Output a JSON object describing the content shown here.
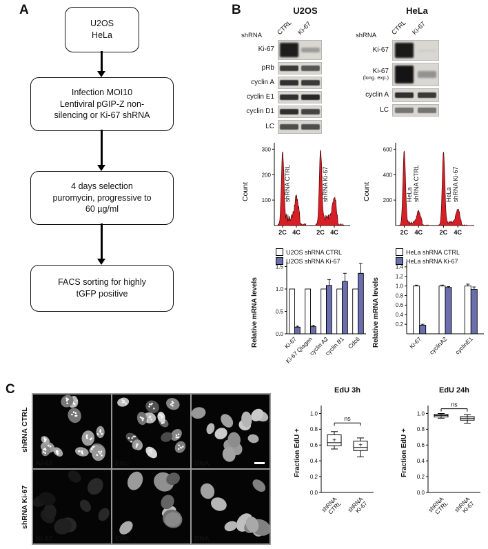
{
  "panels": {
    "a": "A",
    "b": "B",
    "c": "C"
  },
  "panel_a": {
    "steps": [
      "U2OS\nHeLa",
      "Infection MOI10\nLentiviral pGIP-Z non-\nsilencing or Ki-67 shRNA",
      "4 days selection\npuromycin, progressive to\n60 µg/ml",
      "FACS sorting for highly\ntGFP positive"
    ]
  },
  "panel_b": {
    "u2os": {
      "title": "U2OS",
      "shrna": "shRNA",
      "lanes": [
        "CTRL",
        "Ki-67"
      ],
      "blot_rows": [
        {
          "label": "Ki-67",
          "h": 27,
          "big": true,
          "lanes": [
            0.95,
            0.3
          ]
        },
        {
          "label": "pRb",
          "h": 16,
          "lanes": [
            0.8,
            0.65
          ]
        },
        {
          "label": "cyclin A",
          "h": 16,
          "lanes": [
            0.85,
            0.8
          ]
        },
        {
          "label": "cyclin E1",
          "h": 16,
          "lanes": [
            0.85,
            0.9
          ]
        },
        {
          "label": "cyclin D1",
          "h": 16,
          "lanes": [
            0.85,
            0.75
          ]
        },
        {
          "label": "LC",
          "h": 18,
          "lanes": [
            0.7,
            0.7
          ]
        }
      ],
      "facs": {
        "ylabel": "Count",
        "ymax": 320,
        "yticks": [
          100,
          200,
          300
        ],
        "xticks": [
          "2C",
          "4C",
          "2C",
          "4C"
        ],
        "color": "#d61f26",
        "samples": [
          {
            "label": "shRNA CTRL",
            "g1": 290,
            "g2": 88,
            "mid": 30
          },
          {
            "label": "shRNA Ki-67",
            "g1": 295,
            "g2": 82,
            "mid": 30
          }
        ]
      },
      "chart": {
        "type": "bar",
        "ylabel": "Relative mRNA levels",
        "ymax": 1.6,
        "yticks": [
          0,
          0.5,
          1,
          1.5
        ],
        "categories": [
          "Ki-67",
          "Ki-67 Qiagen",
          "cyclin A2",
          "cyclin B1",
          "Cdc6"
        ],
        "series": [
          {
            "name": "U2OS shRNA CTRL",
            "color": "#ffffff",
            "values": [
              1,
              1,
              1,
              1,
              1
            ],
            "err": [
              0,
              0,
              0,
              0,
              0
            ]
          },
          {
            "name": "U2OS shRNA Ki-67",
            "color": "#6a6fad",
            "values": [
              0.15,
              0.16,
              1.08,
              1.17,
              1.35
            ],
            "err": [
              0.02,
              0.03,
              0.13,
              0.18,
              0.22
            ]
          }
        ]
      }
    },
    "hela": {
      "title": "HeLa",
      "shrna": "shRNA",
      "lanes": [
        "CTRL",
        "Ki-67"
      ],
      "blot_rows": [
        {
          "label": "Ki-67",
          "h": 28,
          "big": true,
          "lanes": [
            0.97,
            0.04
          ]
        },
        {
          "label": "Ki-67",
          "sub": "(long. exp.)",
          "h": 32,
          "big": true,
          "lanes": [
            1,
            0.35
          ]
        },
        {
          "label": "cyclin A",
          "h": 18,
          "lanes": [
            0.85,
            0.8
          ]
        },
        {
          "label": "LC",
          "h": 16,
          "lanes": [
            0.5,
            0.5
          ]
        }
      ],
      "facs": {
        "ylabel": "Count",
        "ymax": 640,
        "yticks": [
          200,
          400,
          600
        ],
        "xticks": [
          "2C",
          "4C",
          "2C",
          "4C"
        ],
        "color": "#d61f26",
        "samples": [
          {
            "label": "HeLa\nshRNA CTRL",
            "g1": 590,
            "g2": 95,
            "mid": 22
          },
          {
            "label": "HeLa\nshRNA Ki-67",
            "g1": 580,
            "g2": 108,
            "mid": 24
          }
        ]
      },
      "chart": {
        "type": "bar",
        "ylabel": "Relative mRNA levels",
        "ymax": 1.5,
        "yticks": [
          0.2,
          0.4,
          0.6,
          0.8,
          1,
          1.2,
          1.4
        ],
        "categories": [
          "Ki-67",
          "cyclinA2",
          "cyclinE1"
        ],
        "series": [
          {
            "name": "HeLa shRNA CTRL",
            "color": "#ffffff",
            "values": [
              1,
              1,
              1
            ],
            "err": [
              0.02,
              0.02,
              0.04
            ]
          },
          {
            "name": "HeLa shRNA Ki-67",
            "color": "#6a6fad",
            "values": [
              0.18,
              0.97,
              0.93
            ],
            "err": [
              0.02,
              0.02,
              0.05
            ]
          }
        ]
      }
    }
  },
  "panel_c": {
    "micro": {
      "rows": [
        {
          "label": "shRNA CTRL",
          "cells": [
            {
              "stain": "Ki-67",
              "count": 14,
              "min": 0.45,
              "max": 0.75,
              "size": 9,
              "speckle": "#ffffff"
            },
            {
              "stain": "EdU",
              "count": 14,
              "min": 0.2,
              "max": 0.85,
              "size": 9,
              "speckle": "#f0f0f0"
            },
            {
              "stain": "DNA",
              "count": 13,
              "min": 0.55,
              "max": 0.8,
              "size": 9,
              "scalebar": true
            }
          ]
        },
        {
          "label": "shRNA Ki-67",
          "cells": [
            {
              "stain": "Ki-67",
              "count": 10,
              "min": 0.06,
              "max": 0.16,
              "size": 10
            },
            {
              "stain": "EdU",
              "count": 8,
              "min": 0.35,
              "max": 0.9,
              "size": 12
            },
            {
              "stain": "DNA",
              "count": 9,
              "min": 0.5,
              "max": 0.78,
              "size": 12
            }
          ]
        }
      ]
    },
    "boxplots": [
      {
        "title": "EdU 3h",
        "ylabel": "Fraction EdU +",
        "yticks": [
          0,
          0.2,
          0.4,
          0.6,
          0.8,
          1
        ],
        "sig": "ns",
        "sig_y": 0.88,
        "groups": [
          {
            "label": "shRNA\nCTRL",
            "lo": 0.55,
            "q1": 0.59,
            "med": 0.63,
            "q3": 0.73,
            "hi": 0.77,
            "mean": 0.66
          },
          {
            "label": "shRNA\nKi-67",
            "lo": 0.45,
            "q1": 0.53,
            "med": 0.57,
            "q3": 0.65,
            "hi": 0.69,
            "mean": 0.6
          }
        ]
      },
      {
        "title": "EdU 24h",
        "ylabel": "Fraction EdU +",
        "yticks": [
          0,
          0.2,
          0.4,
          0.6,
          0.8,
          1
        ],
        "sig": "ns",
        "sig_y": 1.06,
        "groups": [
          {
            "label": "shRNA\nCTRL",
            "lo": 0.94,
            "q1": 0.955,
            "med": 0.975,
            "q3": 0.99,
            "hi": 1.0,
            "mean": 0.97
          },
          {
            "label": "shRNA\nKi-67",
            "lo": 0.875,
            "q1": 0.915,
            "med": 0.94,
            "q3": 0.96,
            "hi": 0.985,
            "mean": 0.935
          }
        ]
      }
    ]
  }
}
